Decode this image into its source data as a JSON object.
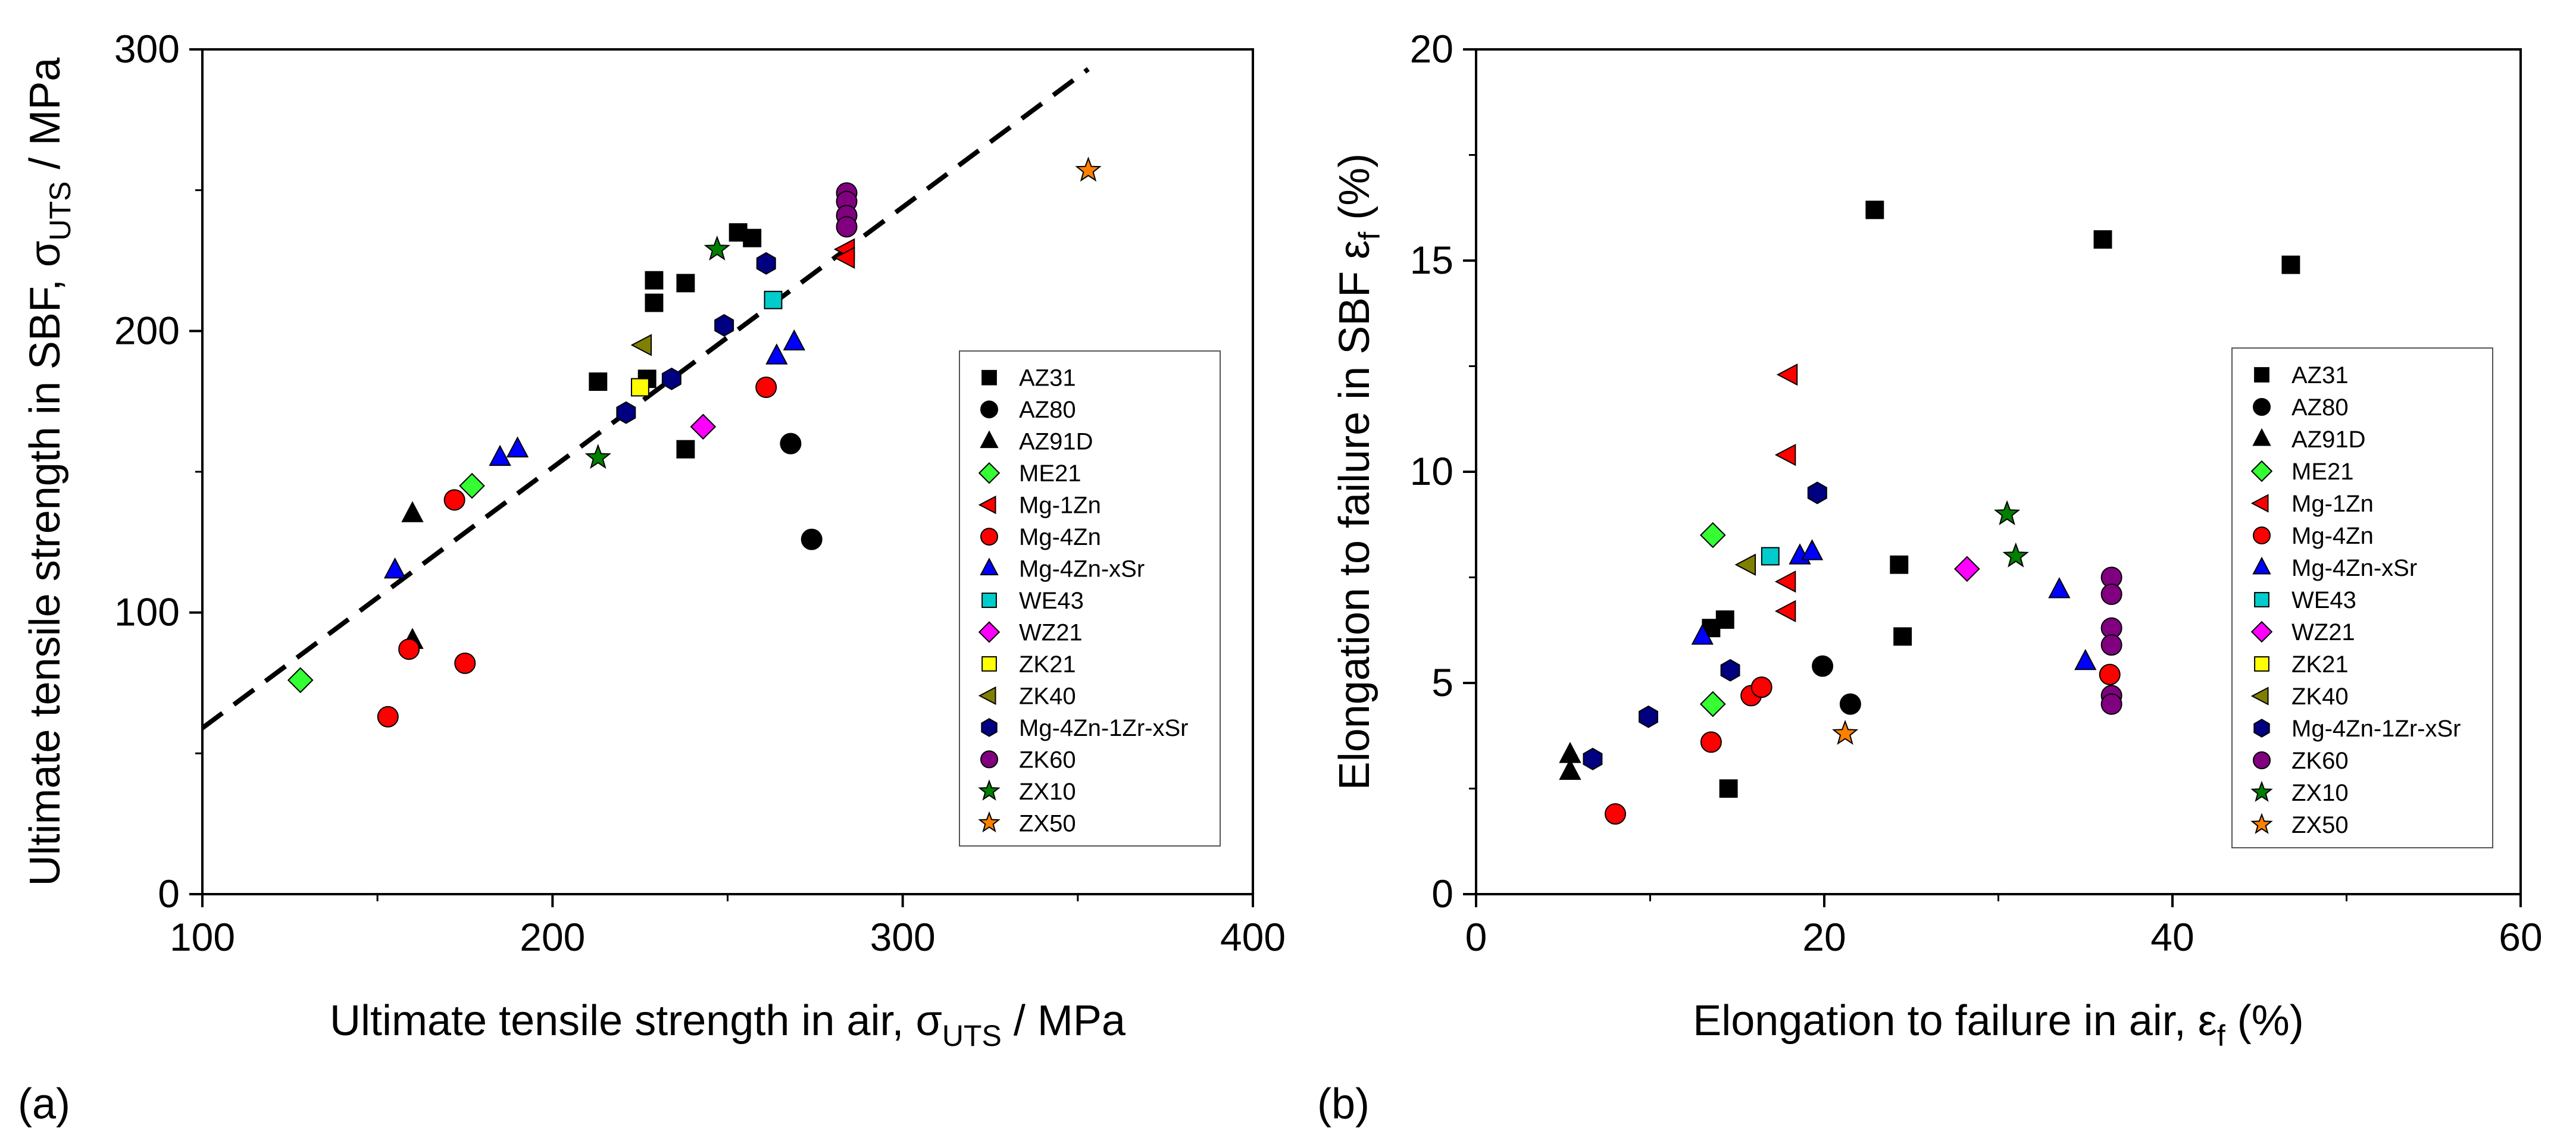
{
  "chart_data": [
    {
      "type": "scatter",
      "panel_label": "(a)",
      "title": "",
      "xlabel": {
        "main": "Ultimate tensile strength in air, σ",
        "sub": "UTS",
        "tail": " / MPa"
      },
      "ylabel": {
        "main": "Ultimate tensile strength in SBF, σ",
        "sub": "UTS",
        "tail": " /  MPa"
      },
      "xlim": [
        100,
        400
      ],
      "ylim": [
        0,
        300
      ],
      "xticks": [
        100,
        200,
        300,
        400
      ],
      "yticks": [
        0,
        100,
        200,
        300
      ],
      "grid": false,
      "legend_position": "right-center",
      "reference_line": {
        "style": "dashed",
        "points": [
          [
            100,
            59
          ],
          [
            353,
            293
          ]
        ]
      },
      "series": [
        {
          "name": "AZ31",
          "marker": "square",
          "color": "#000000",
          "points": [
            [
              213,
              182
            ],
            [
              229,
              218
            ],
            [
              229,
              210
            ],
            [
              227,
              183
            ],
            [
              238,
              217
            ],
            [
              238,
              158
            ],
            [
              253,
              235
            ],
            [
              257,
              233
            ]
          ]
        },
        {
          "name": "AZ80",
          "marker": "circle",
          "color": "#000000",
          "points": [
            [
              268,
              160
            ],
            [
              274,
              126
            ]
          ]
        },
        {
          "name": "AZ91D",
          "marker": "triangle-up",
          "color": "#000000",
          "points": [
            [
              160,
              135
            ],
            [
              160,
              90
            ]
          ]
        },
        {
          "name": "ME21",
          "marker": "diamond",
          "color": "#33ff33",
          "points": [
            [
              128,
              76
            ],
            [
              177,
              145
            ]
          ]
        },
        {
          "name": "Mg-1Zn",
          "marker": "triangle-left",
          "color": "#ff0000",
          "points": [
            [
              284,
              229
            ],
            [
              284,
              226
            ]
          ]
        },
        {
          "name": "Mg-4Zn",
          "marker": "circle",
          "color": "#ff0000",
          "points": [
            [
              153,
              63
            ],
            [
              159,
              87
            ],
            [
              172,
              140
            ],
            [
              175,
              82
            ],
            [
              261,
              180
            ]
          ]
        },
        {
          "name": "Mg-4Zn-xSr",
          "marker": "triangle-up",
          "color": "#0000ff",
          "points": [
            [
              155,
              115
            ],
            [
              185,
              155
            ],
            [
              190,
              158
            ],
            [
              264,
              191
            ],
            [
              269,
              196
            ]
          ]
        },
        {
          "name": "WE43",
          "marker": "square",
          "color": "#00cccc",
          "points": [
            [
              263,
              211
            ]
          ]
        },
        {
          "name": "WZ21",
          "marker": "diamond",
          "color": "#ff00ff",
          "points": [
            [
              243,
              166
            ]
          ]
        },
        {
          "name": "ZK21",
          "marker": "square",
          "color": "#ffff00",
          "points": [
            [
              225,
              180
            ]
          ]
        },
        {
          "name": "ZK40",
          "marker": "triangle-left",
          "color": "#808000",
          "points": [
            [
              226,
              195
            ]
          ]
        },
        {
          "name": "Mg-4Zn-1Zr-xSr",
          "marker": "hexagon",
          "color": "#000080",
          "points": [
            [
              221,
              171
            ],
            [
              234,
              183
            ],
            [
              249,
              202
            ],
            [
              261,
              224
            ]
          ]
        },
        {
          "name": "ZK60",
          "marker": "circle",
          "color": "#800080",
          "points": [
            [
              284,
              249
            ],
            [
              284,
              246
            ],
            [
              284,
              241
            ],
            [
              284,
              237
            ]
          ]
        },
        {
          "name": "ZX10",
          "marker": "star",
          "color": "#008000",
          "points": [
            [
              213,
              155
            ],
            [
              247,
              229
            ]
          ]
        },
        {
          "name": "ZX50",
          "marker": "star",
          "color": "#ff8000",
          "points": [
            [
              353,
              257
            ]
          ]
        }
      ]
    },
    {
      "type": "scatter",
      "panel_label": "(b)",
      "title": "",
      "xlabel": {
        "main": "Elongation to failure in air, ε",
        "sub": "f",
        "tail": " (%)"
      },
      "ylabel": {
        "main": "Elongation to failure in SBF ε",
        "sub": "f",
        "tail": " (%)"
      },
      "xlim": [
        0,
        60
      ],
      "ylim": [
        0,
        20
      ],
      "xticks": [
        0,
        20,
        40,
        60
      ],
      "yticks": [
        0,
        5,
        10,
        15,
        20
      ],
      "grid": false,
      "legend_position": "right-center",
      "series": [
        {
          "name": "AZ31",
          "marker": "square",
          "color": "#000000",
          "points": [
            [
              22.9,
              16.2
            ],
            [
              36.0,
              15.5
            ],
            [
              46.8,
              14.9
            ],
            [
              24.3,
              7.8
            ],
            [
              24.5,
              6.1
            ],
            [
              13.5,
              6.3
            ],
            [
              14.3,
              6.5
            ],
            [
              14.5,
              2.5
            ]
          ]
        },
        {
          "name": "AZ80",
          "marker": "circle",
          "color": "#000000",
          "points": [
            [
              19.9,
              5.4
            ],
            [
              21.5,
              4.5
            ]
          ]
        },
        {
          "name": "AZ91D",
          "marker": "triangle-up",
          "color": "#000000",
          "points": [
            [
              5.4,
              3.3
            ],
            [
              5.4,
              2.9
            ]
          ]
        },
        {
          "name": "ME21",
          "marker": "diamond",
          "color": "#33ff33",
          "points": [
            [
              13.6,
              8.5
            ],
            [
              13.6,
              4.5
            ]
          ]
        },
        {
          "name": "Mg-1Zn",
          "marker": "triangle-left",
          "color": "#ff0000",
          "points": [
            [
              18.0,
              12.3
            ],
            [
              17.9,
              10.4
            ],
            [
              17.9,
              7.4
            ],
            [
              17.9,
              6.7
            ]
          ]
        },
        {
          "name": "Mg-4Zn",
          "marker": "circle",
          "color": "#ff0000",
          "points": [
            [
              8.0,
              1.9
            ],
            [
              13.5,
              3.6
            ],
            [
              15.8,
              4.7
            ],
            [
              16.4,
              4.9
            ],
            [
              36.4,
              5.2
            ]
          ]
        },
        {
          "name": "Mg-4Zn-xSr",
          "marker": "triangle-up",
          "color": "#0000ff",
          "points": [
            [
              13.0,
              6.1
            ],
            [
              18.6,
              8.0
            ],
            [
              19.3,
              8.1
            ],
            [
              33.5,
              7.2
            ],
            [
              35.0,
              5.5
            ]
          ]
        },
        {
          "name": "WE43",
          "marker": "square",
          "color": "#00cccc",
          "points": [
            [
              16.9,
              8.0
            ]
          ]
        },
        {
          "name": "WZ21",
          "marker": "diamond",
          "color": "#ff00ff",
          "points": [
            [
              28.2,
              7.7
            ]
          ]
        },
        {
          "name": "ZK21",
          "marker": "square",
          "color": "#ffff00",
          "points": []
        },
        {
          "name": "ZK40",
          "marker": "triangle-left",
          "color": "#808000",
          "points": [
            [
              15.6,
              7.8
            ]
          ]
        },
        {
          "name": "Mg-4Zn-1Zr-xSr",
          "marker": "hexagon",
          "color": "#000080",
          "points": [
            [
              6.7,
              3.2
            ],
            [
              9.9,
              4.2
            ],
            [
              14.6,
              5.3
            ],
            [
              19.6,
              9.5
            ]
          ]
        },
        {
          "name": "ZK60",
          "marker": "circle",
          "color": "#800080",
          "points": [
            [
              36.5,
              7.5
            ],
            [
              36.5,
              7.1
            ],
            [
              36.5,
              6.3
            ],
            [
              36.5,
              5.9
            ],
            [
              36.5,
              4.7
            ],
            [
              36.5,
              4.5
            ]
          ]
        },
        {
          "name": "ZX10",
          "marker": "star",
          "color": "#008000",
          "points": [
            [
              30.5,
              9.0
            ],
            [
              31.0,
              8.0
            ]
          ]
        },
        {
          "name": "ZX50",
          "marker": "star",
          "color": "#ff8000",
          "points": [
            [
              21.2,
              3.8
            ]
          ]
        }
      ]
    }
  ]
}
